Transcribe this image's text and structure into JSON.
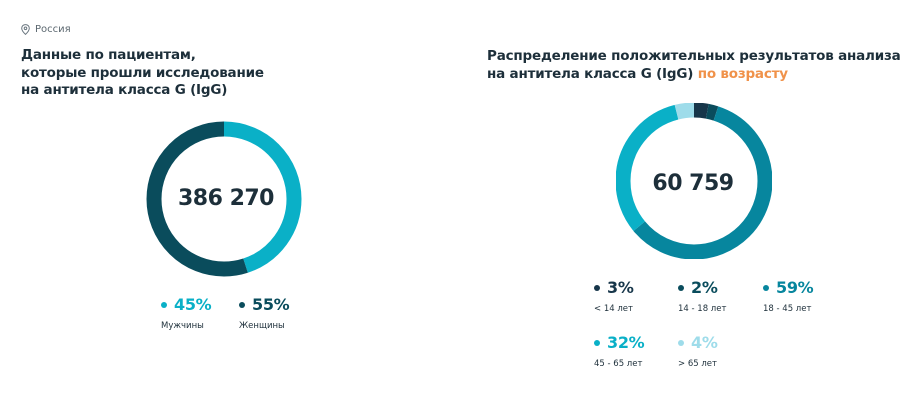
{
  "location": {
    "icon": "location-pin-icon",
    "label": "Россия"
  },
  "colors": {
    "dark_teal": "#0a4c5c",
    "mid_teal": "#07869e",
    "cyan": "#0ab0c7",
    "light_cyan": "#9edcea",
    "navy": "#17364a",
    "accent_orange": "#f0924a"
  },
  "left_block": {
    "title_lines": [
      "Данные по пациентам,",
      "которые прошли исследование",
      "на антитела класса G (IgG)"
    ],
    "total": "386 270"
  },
  "right_block": {
    "title_line1": "Распределение положительных результатов анализа",
    "title_line2": "на антитела класса G (IgG)",
    "title_highlight": "по возрасту",
    "total": "60 759"
  },
  "chart_data": [
    {
      "type": "pie",
      "style": "donut",
      "center_label": "386 270",
      "categories": [
        "Мужчины",
        "Женщины"
      ],
      "values": [
        45,
        55
      ],
      "value_labels": [
        "45%",
        "55%"
      ],
      "colors": [
        "#0ab0c7",
        "#0a4c5c"
      ],
      "legend_colors": [
        "#0ab0c7",
        "#0a4c5c"
      ]
    },
    {
      "type": "pie",
      "style": "donut",
      "center_label": "60 759",
      "categories": [
        "< 14 лет",
        "14 - 18 лет",
        "18 - 45 лет",
        "45 - 65 лет",
        "> 65 лет"
      ],
      "values": [
        3,
        2,
        59,
        32,
        4
      ],
      "value_labels": [
        "3%",
        "2%",
        "59%",
        "32%",
        "4%"
      ],
      "colors": [
        "#17364a",
        "#0a4c5c",
        "#07869e",
        "#0ab0c7",
        "#9edcea"
      ],
      "legend_colors": [
        "#17364a",
        "#0a4c5c",
        "#07869e",
        "#0ab0c7",
        "#9edcea"
      ]
    }
  ]
}
